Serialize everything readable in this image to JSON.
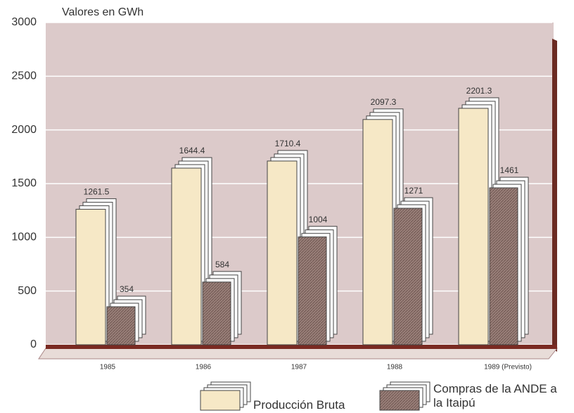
{
  "chart_data": {
    "type": "bar",
    "y_label": "Valores en GWh",
    "categories": [
      "1985",
      "1986",
      "1987",
      "1988",
      "1989 (Previsto)"
    ],
    "series": [
      {
        "name": "Producción Bruta",
        "color": "#f6e8c6",
        "values": [
          1261.5,
          1644.4,
          1710.4,
          2097.3,
          2201.3
        ]
      },
      {
        "name": "Compras de la ANDE a la Itaipú",
        "color": "#8c726c",
        "values": [
          354,
          584,
          1004,
          1271,
          1461
        ]
      }
    ],
    "ylim": [
      0,
      3000
    ],
    "yticks": [
      0,
      500,
      1000,
      1500,
      2000,
      2500,
      3000
    ],
    "grid": true
  }
}
